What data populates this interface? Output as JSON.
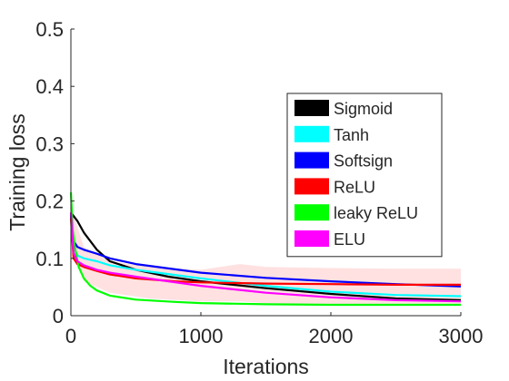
{
  "chart_data": {
    "type": "line",
    "title": "",
    "xlabel": "Iterations",
    "ylabel": "Training loss",
    "xlim": [
      0,
      3000
    ],
    "ylim": [
      0,
      0.5
    ],
    "xticks": [
      0,
      1000,
      2000,
      3000
    ],
    "xtick_labels": [
      "0",
      "1000",
      "2000",
      "3000"
    ],
    "yticks": [
      0,
      0.1,
      0.2,
      0.3,
      0.4,
      0.5
    ],
    "ytick_labels": [
      "0",
      "0.1",
      "0.2",
      "0.3",
      "0.4",
      "0.5"
    ],
    "grid": false,
    "legend_position": "center-right",
    "band": {
      "color": "#ffc8c8",
      "x": [
        0,
        100,
        300,
        600,
        1000,
        1300,
        1500,
        2000,
        2500,
        3000
      ],
      "upper": [
        0.19,
        0.12,
        0.095,
        0.085,
        0.08,
        0.09,
        0.085,
        0.083,
        0.082,
        0.082
      ],
      "lower": [
        0.14,
        0.06,
        0.04,
        0.03,
        0.025,
        0.025,
        0.022,
        0.02,
        0.02,
        0.02
      ]
    },
    "series": [
      {
        "name": "Sigmoid",
        "color": "#000000",
        "x": [
          0,
          50,
          100,
          200,
          300,
          500,
          750,
          1000,
          1500,
          2000,
          2500,
          3000
        ],
        "y": [
          0.18,
          0.165,
          0.145,
          0.115,
          0.095,
          0.08,
          0.068,
          0.06,
          0.048,
          0.038,
          0.03,
          0.027
        ]
      },
      {
        "name": "Tanh",
        "color": "#00ffff",
        "x": [
          0,
          20,
          50,
          100,
          200,
          300,
          500,
          1000,
          1500,
          2000,
          2500,
          3000
        ],
        "y": [
          0.17,
          0.12,
          0.105,
          0.1,
          0.095,
          0.088,
          0.08,
          0.065,
          0.052,
          0.042,
          0.036,
          0.034
        ]
      },
      {
        "name": "Softsign",
        "color": "#0000ff",
        "x": [
          0,
          20,
          50,
          100,
          200,
          300,
          500,
          1000,
          1500,
          2000,
          2500,
          3000
        ],
        "y": [
          0.175,
          0.13,
          0.12,
          0.115,
          0.108,
          0.1,
          0.09,
          0.075,
          0.066,
          0.06,
          0.055,
          0.051
        ]
      },
      {
        "name": "ReLU",
        "color": "#ff0000",
        "x": [
          0,
          20,
          50,
          100,
          200,
          300,
          500,
          800,
          1000,
          1500,
          2000,
          2500,
          3000
        ],
        "y": [
          0.17,
          0.1,
          0.09,
          0.085,
          0.078,
          0.072,
          0.065,
          0.06,
          0.058,
          0.056,
          0.055,
          0.054,
          0.054
        ]
      },
      {
        "name": "leaky ReLU",
        "color": "#00ff00",
        "x": [
          0,
          15,
          30,
          60,
          100,
          150,
          200,
          300,
          500,
          800,
          1000,
          1500,
          2000,
          2500,
          3000
        ],
        "y": [
          0.215,
          0.15,
          0.12,
          0.085,
          0.065,
          0.052,
          0.044,
          0.035,
          0.028,
          0.024,
          0.022,
          0.02,
          0.019,
          0.019,
          0.019
        ]
      },
      {
        "name": "ELU",
        "color": "#ff00ff",
        "x": [
          0,
          20,
          50,
          100,
          200,
          300,
          500,
          750,
          1000,
          1500,
          2000,
          2500,
          3000
        ],
        "y": [
          0.18,
          0.11,
          0.095,
          0.088,
          0.08,
          0.075,
          0.068,
          0.06,
          0.052,
          0.04,
          0.032,
          0.027,
          0.025
        ]
      }
    ]
  }
}
